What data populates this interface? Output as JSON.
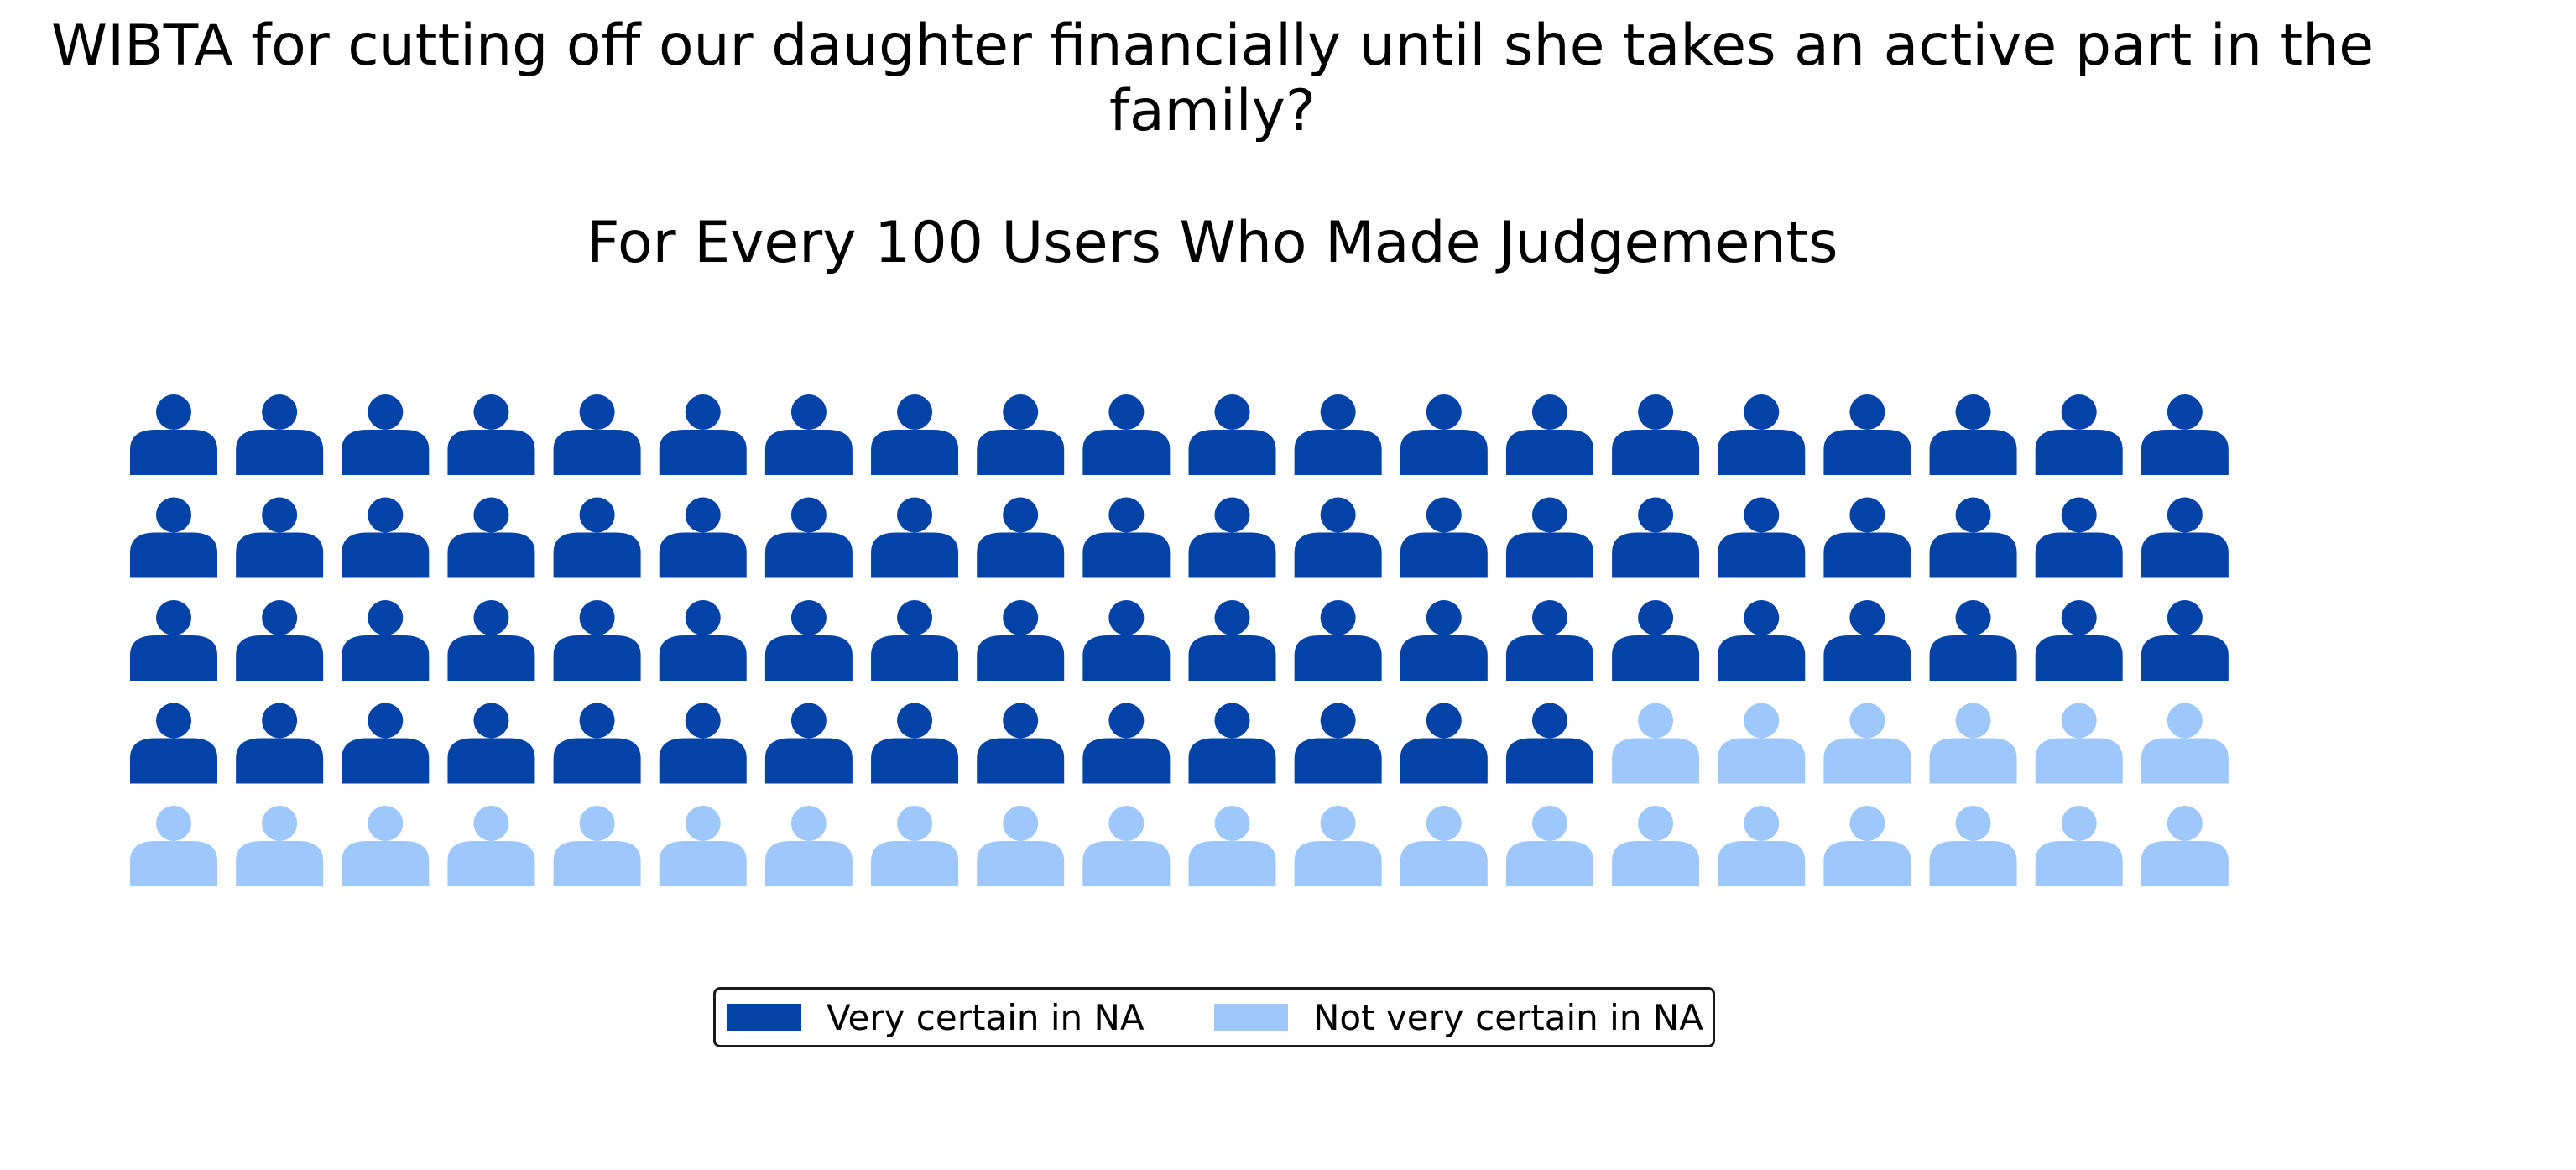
{
  "chart_data": {
    "type": "waffle",
    "title": "WIBTA for cutting off our daughter financially until she takes an active part in the family?",
    "subtitle": "For Every 100 Users Who Made Judgements",
    "rows": 5,
    "columns": 20,
    "fill_order": "row-major, top-left first",
    "categories": [
      "Very certain in NA",
      "Not very certain in NA"
    ],
    "values": [
      74,
      26
    ],
    "colors": [
      "#0343a8",
      "#9ec8fb"
    ],
    "icon": "person-icon",
    "legend_position": "bottom-center"
  }
}
